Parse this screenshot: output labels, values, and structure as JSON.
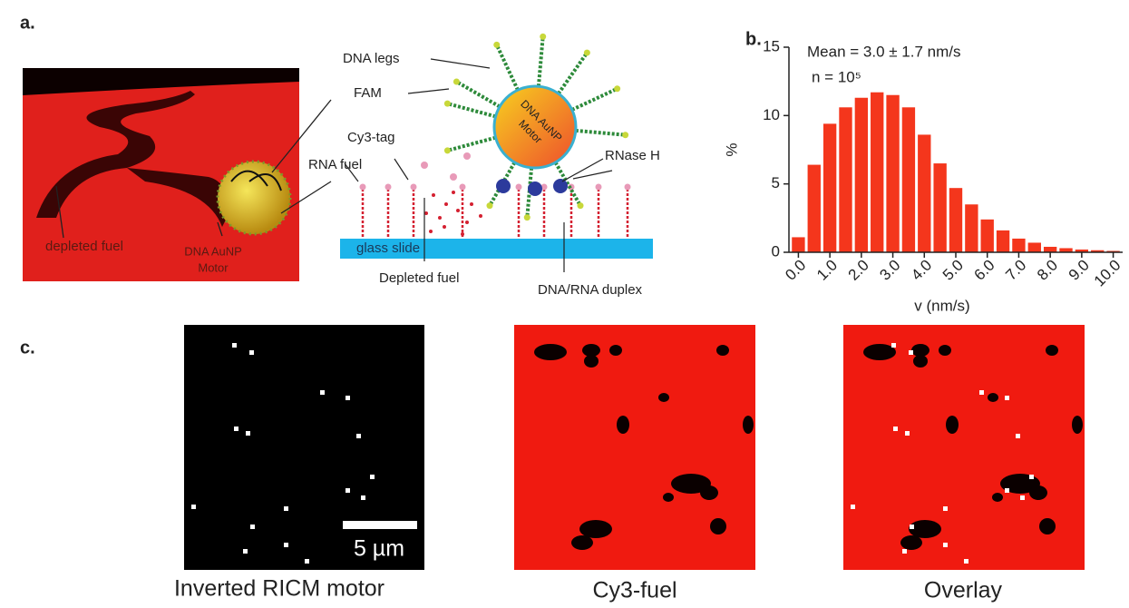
{
  "panel_labels": [
    "a.",
    "b.",
    "c."
  ],
  "panel_a": {
    "labels": {
      "dna_legs": "DNA legs",
      "fam": "FAM",
      "cy3_tag": "Cy3-tag",
      "rna_fuel": "RNA fuel",
      "rnase_h": "RNase H",
      "glass_slide": "glass slide",
      "depleted_fuel_schematic": "Depleted fuel",
      "duplex": "DNA/RNA duplex",
      "depleted_fuel_image": "depleted fuel",
      "motor_image": [
        "DNA AuNP",
        "Motor"
      ],
      "motor_schematic": [
        "DNA AuNP",
        "Motor"
      ]
    }
  },
  "chart_data": {
    "type": "histogram",
    "annotations": [
      "Mean = 3.0 ± 1.7 nm/s",
      "n = 10⁵"
    ],
    "xlabel": "v (nm/s)",
    "ylabel": "%",
    "bins": [
      -0.25,
      0.25,
      0.75,
      1.25,
      1.75,
      2.25,
      2.75,
      3.25,
      3.75,
      4.25,
      4.75,
      5.25,
      5.75,
      6.25,
      6.75,
      7.25,
      7.75,
      8.25,
      8.75,
      9.25,
      9.75,
      10.25
    ],
    "values": [
      1.1,
      6.4,
      9.4,
      10.6,
      11.3,
      11.7,
      11.5,
      10.6,
      8.6,
      6.5,
      4.7,
      3.5,
      2.4,
      1.6,
      1.0,
      0.7,
      0.4,
      0.3,
      0.2,
      0.15,
      0.1
    ],
    "color": "#f4361c",
    "xlim": [
      -0.3,
      10.3
    ],
    "ylim": [
      0,
      15
    ],
    "yticks": [
      0,
      5,
      10,
      15
    ],
    "xticks": [
      {
        "value": 0,
        "label": "0.0"
      },
      {
        "value": 1,
        "label": "1.0"
      },
      {
        "value": 2,
        "label": "2.0"
      },
      {
        "value": 3,
        "label": "3.0"
      },
      {
        "value": 4,
        "label": "4.0"
      },
      {
        "value": 5,
        "label": "5.0"
      },
      {
        "value": 6,
        "label": "6.0"
      },
      {
        "value": 7,
        "label": "7.0"
      },
      {
        "value": 8,
        "label": "8.0"
      },
      {
        "value": 9,
        "label": "9.0"
      },
      {
        "value": 10,
        "label": "10.0"
      }
    ]
  },
  "panel_c": {
    "images": [
      "Inverted RICM motor",
      "Cy3-fuel",
      "Overlay"
    ],
    "scale_bar": "5 µm"
  }
}
